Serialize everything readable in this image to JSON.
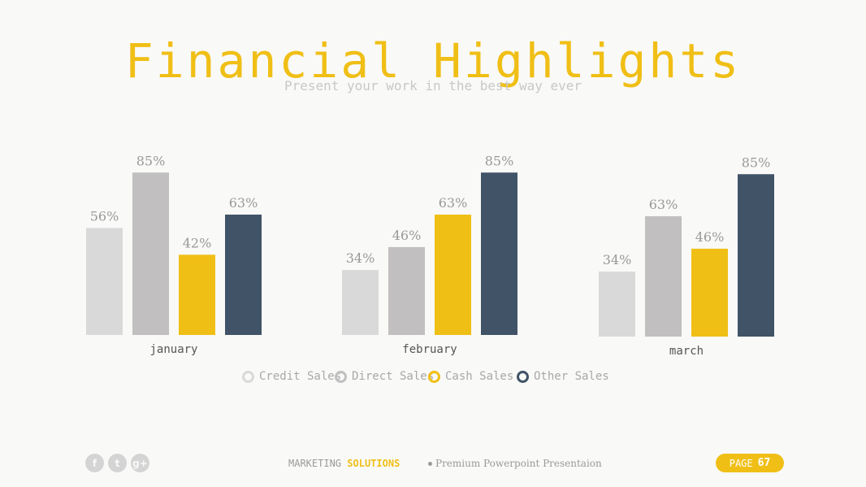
{
  "title": "Financial Highlights",
  "subtitle": "Present your work in the best way ever",
  "colors": {
    "title": "#f0bf16",
    "credit": "#d9d9d9",
    "direct": "#c1bfc0",
    "cash": "#f0bf16",
    "other": "#415366",
    "label": "#999999"
  },
  "chart_data": {
    "type": "bar",
    "categories": [
      "january",
      "february",
      "march"
    ],
    "series": [
      {
        "name": "Credit Sales",
        "values": [
          56,
          34,
          34
        ]
      },
      {
        "name": "Direct Sales",
        "values": [
          85,
          46,
          63
        ]
      },
      {
        "name": "Cash Sales",
        "values": [
          42,
          63,
          46
        ]
      },
      {
        "name": "Other Sales",
        "values": [
          63,
          85,
          85
        ]
      }
    ],
    "value_suffix": "%",
    "ylim": [
      0,
      100
    ],
    "grid": false,
    "legend_position": "bottom"
  },
  "footer": {
    "social_icons": [
      "facebook-icon",
      "twitter-icon",
      "google-plus-icon"
    ],
    "brand_prefix": "MARKETING",
    "brand_accent": "SOLUTIONS",
    "tagline": "Premium Powerpoint Presentaion",
    "page_label": "PAGE",
    "page_number": "67"
  }
}
